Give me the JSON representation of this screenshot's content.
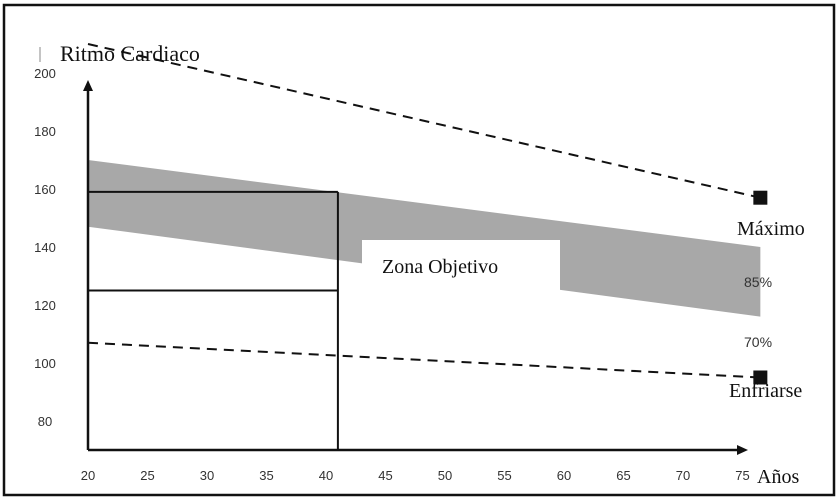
{
  "chart_data": {
    "type": "line",
    "ylabel": "Ritmo Cardiaco",
    "xlabel": "Años",
    "x_ticks": [
      20,
      25,
      30,
      35,
      40,
      45,
      50,
      55,
      60,
      65,
      70,
      75
    ],
    "y_ticks": [
      80,
      100,
      120,
      140,
      160,
      180,
      200
    ],
    "xlim": [
      20,
      77
    ],
    "ylim": [
      70,
      210
    ],
    "series": [
      {
        "name": "Máximo",
        "style": "dashed",
        "x": [
          20,
          76.5
        ],
        "y": [
          210,
          157
        ],
        "marker": "square"
      },
      {
        "name": "Enfriarse",
        "style": "dashed",
        "x": [
          20,
          76.5
        ],
        "y": [
          107,
          95
        ],
        "marker": "square"
      }
    ],
    "band": {
      "label": "Zona Objetivo",
      "color": "#a8a8a8",
      "upper": {
        "name": "85%",
        "x": [
          20,
          76.5
        ],
        "y": [
          170,
          140
        ]
      },
      "lower": {
        "name": "70%",
        "x": [
          20,
          76.5
        ],
        "y": [
          147,
          116
        ]
      }
    },
    "reference_box": {
      "x": 41,
      "y_high": 159,
      "y_low": 125
    }
  }
}
